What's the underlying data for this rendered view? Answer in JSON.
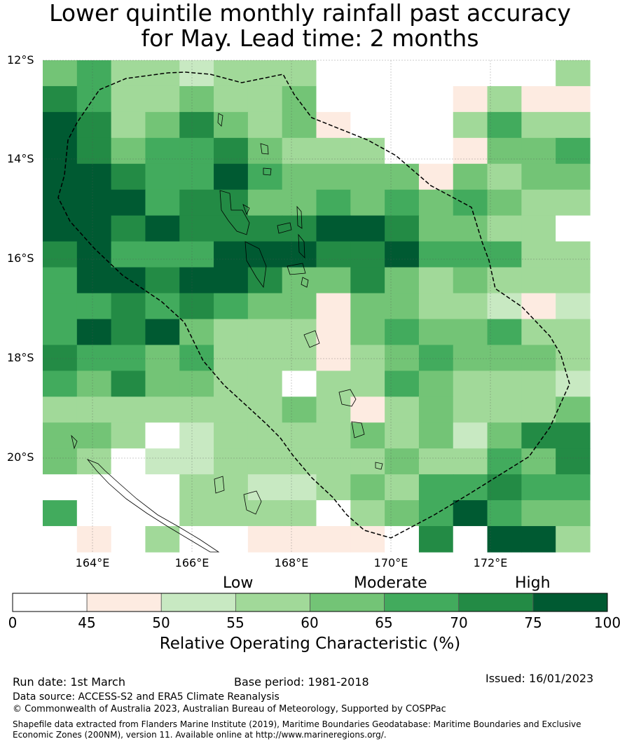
{
  "title": {
    "line1": "Lower quintile monthly rainfall past accuracy",
    "line2": "for May. Lead time: 2 months"
  },
  "map": {
    "lat_labels": [
      "12°S",
      "14°S",
      "16°S",
      "18°S",
      "20°S"
    ],
    "lon_labels": [
      "164°E",
      "166°E",
      "168°E",
      "170°E",
      "172°E"
    ],
    "grid_values": [
      [
        60,
        65,
        55,
        55,
        50,
        55,
        55,
        55,
        0,
        0,
        0,
        0,
        0,
        0,
        0,
        55
      ],
      [
        70,
        65,
        55,
        55,
        60,
        55,
        55,
        60,
        0,
        0,
        0,
        0,
        45,
        55,
        45,
        45
      ],
      [
        75,
        70,
        55,
        60,
        70,
        60,
        55,
        60,
        45,
        0,
        0,
        0,
        55,
        65,
        55,
        55
      ],
      [
        75,
        70,
        60,
        65,
        65,
        70,
        60,
        55,
        55,
        55,
        0,
        0,
        45,
        60,
        60,
        65
      ],
      [
        75,
        75,
        70,
        65,
        65,
        75,
        65,
        60,
        60,
        60,
        60,
        45,
        60,
        55,
        60,
        60
      ],
      [
        75,
        75,
        75,
        65,
        70,
        70,
        60,
        60,
        65,
        60,
        65,
        60,
        65,
        60,
        55,
        55
      ],
      [
        75,
        75,
        70,
        75,
        70,
        70,
        70,
        70,
        75,
        75,
        70,
        60,
        60,
        55,
        55,
        0
      ],
      [
        70,
        75,
        65,
        65,
        65,
        75,
        75,
        75,
        70,
        70,
        75,
        65,
        65,
        65,
        55,
        55
      ],
      [
        65,
        75,
        75,
        70,
        75,
        75,
        70,
        60,
        60,
        70,
        60,
        55,
        60,
        55,
        55,
        55
      ],
      [
        65,
        65,
        70,
        65,
        70,
        65,
        60,
        60,
        45,
        60,
        60,
        55,
        55,
        50,
        45,
        50
      ],
      [
        65,
        75,
        70,
        75,
        60,
        55,
        55,
        55,
        45,
        60,
        65,
        60,
        60,
        65,
        55,
        55
      ],
      [
        70,
        65,
        65,
        60,
        65,
        55,
        55,
        55,
        45,
        55,
        60,
        65,
        60,
        60,
        60,
        55
      ],
      [
        65,
        60,
        70,
        60,
        60,
        55,
        55,
        0,
        55,
        55,
        65,
        60,
        55,
        55,
        55,
        50
      ],
      [
        55,
        55,
        55,
        55,
        55,
        55,
        55,
        60,
        55,
        45,
        55,
        60,
        55,
        55,
        55,
        60
      ],
      [
        60,
        60,
        55,
        0,
        50,
        55,
        55,
        55,
        55,
        60,
        55,
        60,
        50,
        60,
        70,
        70
      ],
      [
        60,
        55,
        0,
        50,
        50,
        55,
        55,
        55,
        55,
        55,
        60,
        55,
        55,
        65,
        60,
        70
      ],
      [
        0,
        0,
        0,
        0,
        55,
        55,
        50,
        50,
        55,
        60,
        55,
        65,
        65,
        70,
        65,
        65
      ],
      [
        65,
        0,
        0,
        0,
        55,
        55,
        55,
        55,
        0,
        55,
        60,
        65,
        75,
        65,
        60,
        60
      ],
      [
        0,
        45,
        0,
        55,
        0,
        0,
        45,
        45,
        45,
        45,
        0,
        70,
        0,
        75,
        75,
        55
      ]
    ]
  },
  "colorbar": {
    "categories": [
      "Low",
      "Moderate",
      "High"
    ],
    "ticks": [
      "0",
      "45",
      "50",
      "55",
      "60",
      "65",
      "70",
      "75",
      "100"
    ],
    "bins": [
      {
        "min": 0,
        "max": 45,
        "color": "#ffffff"
      },
      {
        "min": 45,
        "max": 50,
        "color": "#fdebe1"
      },
      {
        "min": 50,
        "max": 55,
        "color": "#c8e9c2"
      },
      {
        "min": 55,
        "max": 60,
        "color": "#a1d999"
      },
      {
        "min": 60,
        "max": 65,
        "color": "#73c476"
      },
      {
        "min": 65,
        "max": 70,
        "color": "#42ab5d"
      },
      {
        "min": 70,
        "max": 75,
        "color": "#238b45"
      },
      {
        "min": 75,
        "max": 100,
        "color": "#005a32"
      }
    ],
    "title": "Relative Operating Characteristic (%)"
  },
  "footer": {
    "run_date": "Run date: 1st March",
    "base_period": "Base period: 1981-2018",
    "issued": "Issued: 16/01/2023",
    "data_source": "Data source: ACCESS-S2 and ERA5 Climate Reanalysis",
    "copyright": "© Commonwealth of Australia 2023, Australian Bureau of Meteorology, Supported by COSPPac",
    "shapefile": "Shapefile data extracted from Flanders Marine Institute (2019), Maritime Boundaries Geodatabase: Maritime Boundaries and Exclusive Economic Zones (200NM), version 11. Available online at http://www.marineregions.org/."
  }
}
